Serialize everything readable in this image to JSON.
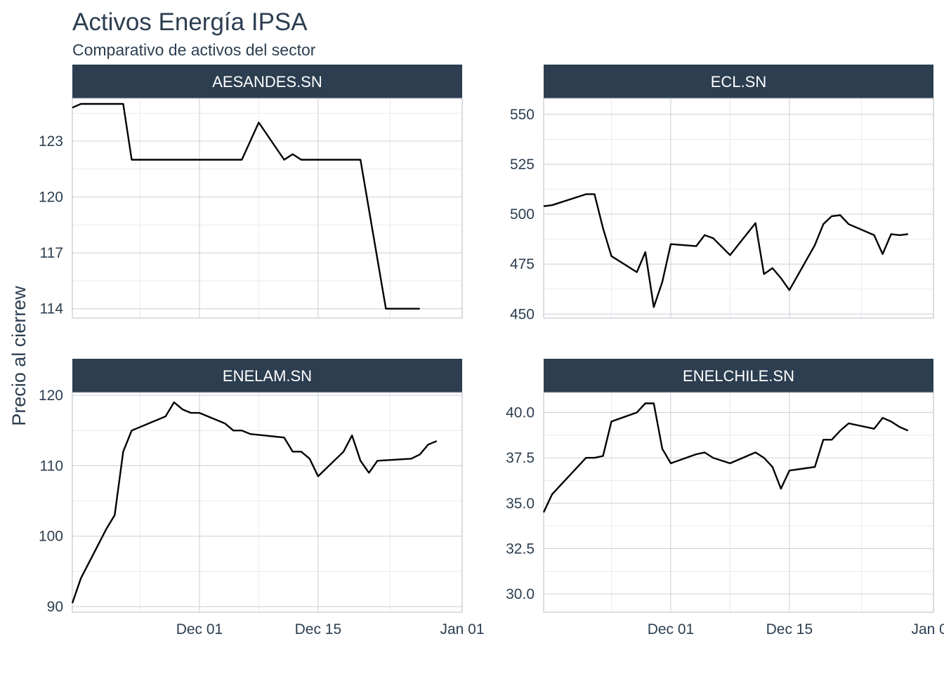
{
  "chart_data": {
    "type": "line",
    "title": "Activos Energía IPSA",
    "subtitle": "Comparativo de activos del sector",
    "ylabel": "Precio al cierrew",
    "xlabel": "",
    "grid": true,
    "facets": "2x2 free y scales, shared x axis",
    "x_ticks": [
      "Dec 01",
      "Dec 15",
      "Jan 01"
    ],
    "x_tick_dates": [
      "2023-12-01",
      "2023-12-15",
      "2024-01-01"
    ],
    "x_range": [
      "2023-11-16",
      "2024-01-01"
    ],
    "panels": [
      {
        "name": "AESANDES.SN",
        "y_ticks": [
          "114",
          "117",
          "120",
          "123"
        ],
        "y_tick_values": [
          114,
          117,
          120,
          123
        ],
        "ylim": [
          113.5,
          125.3
        ],
        "x": [
          "2023-11-16",
          "2023-11-17",
          "2023-11-22",
          "2023-11-23",
          "2023-11-29",
          "2023-12-06",
          "2023-12-08",
          "2023-12-11",
          "2023-12-12",
          "2023-12-13",
          "2023-12-20",
          "2023-12-23",
          "2023-12-27"
        ],
        "y": [
          124.8,
          125.0,
          125.0,
          122.0,
          122.0,
          122.0,
          124.0,
          122.0,
          122.3,
          122.0,
          122.0,
          114.0,
          114.0
        ]
      },
      {
        "name": "ECL.SN",
        "y_ticks": [
          "450",
          "475",
          "500",
          "525",
          "550"
        ],
        "y_tick_values": [
          450,
          475,
          500,
          525,
          550
        ],
        "ylim": [
          448,
          558
        ],
        "x": [
          "2023-11-16",
          "2023-11-17",
          "2023-11-21",
          "2023-11-22",
          "2023-11-23",
          "2023-11-24",
          "2023-11-27",
          "2023-11-28",
          "2023-11-29",
          "2023-11-30",
          "2023-12-01",
          "2023-12-04",
          "2023-12-05",
          "2023-12-06",
          "2023-12-08",
          "2023-12-11",
          "2023-12-12",
          "2023-12-13",
          "2023-12-14",
          "2023-12-15",
          "2023-12-18",
          "2023-12-19",
          "2023-12-20",
          "2023-12-21",
          "2023-12-22",
          "2023-12-25",
          "2023-12-26",
          "2023-12-27",
          "2023-12-28",
          "2023-12-29"
        ],
        "y": [
          504,
          504.5,
          510,
          510,
          493,
          479,
          471,
          481,
          453.5,
          466,
          485,
          484,
          489.5,
          488,
          479.5,
          495.5,
          470,
          473,
          468,
          462,
          484.5,
          495,
          499,
          499.5,
          495,
          489.5,
          480,
          490,
          489.5,
          490
        ]
      },
      {
        "name": "ENELAM.SN",
        "y_ticks": [
          "90",
          "100",
          "110",
          "120"
        ],
        "y_tick_values": [
          90,
          100,
          110,
          120
        ],
        "ylim": [
          89.2,
          120.4
        ],
        "x": [
          "2023-11-16",
          "2023-11-17",
          "2023-11-20",
          "2023-11-21",
          "2023-11-22",
          "2023-11-23",
          "2023-11-27",
          "2023-11-28",
          "2023-11-29",
          "2023-11-30",
          "2023-12-01",
          "2023-12-04",
          "2023-12-05",
          "2023-12-06",
          "2023-12-07",
          "2023-12-11",
          "2023-12-12",
          "2023-12-13",
          "2023-12-14",
          "2023-12-15",
          "2023-12-18",
          "2023-12-19",
          "2023-12-20",
          "2023-12-21",
          "2023-12-22",
          "2023-12-26",
          "2023-12-27",
          "2023-12-28",
          "2023-12-29"
        ],
        "y": [
          90.5,
          94,
          101,
          103,
          112,
          115,
          117,
          119,
          118,
          117.5,
          117.5,
          116,
          115,
          115,
          114.5,
          114,
          112,
          112,
          111,
          108.5,
          112,
          114.3,
          110.7,
          109,
          110.7,
          111,
          111.6,
          113,
          113.5
        ]
      },
      {
        "name": "ENELCHILE.SN",
        "y_ticks": [
          "30.0",
          "32.5",
          "35.0",
          "37.5",
          "40.0"
        ],
        "y_tick_values": [
          30.0,
          32.5,
          35.0,
          37.5,
          40.0
        ],
        "ylim": [
          29.0,
          41.1
        ],
        "x": [
          "2023-11-16",
          "2023-11-17",
          "2023-11-20",
          "2023-11-21",
          "2023-11-22",
          "2023-11-23",
          "2023-11-24",
          "2023-11-27",
          "2023-11-28",
          "2023-11-29",
          "2023-11-30",
          "2023-12-01",
          "2023-12-04",
          "2023-12-05",
          "2023-12-06",
          "2023-12-08",
          "2023-12-11",
          "2023-12-12",
          "2023-12-13",
          "2023-12-14",
          "2023-12-15",
          "2023-12-18",
          "2023-12-19",
          "2023-12-20",
          "2023-12-21",
          "2023-12-22",
          "2023-12-25",
          "2023-12-26",
          "2023-12-27",
          "2023-12-28",
          "2023-12-29"
        ],
        "y": [
          34.5,
          35.5,
          37.0,
          37.5,
          37.5,
          37.6,
          39.5,
          40.0,
          40.5,
          40.5,
          38.0,
          37.2,
          37.7,
          37.8,
          37.5,
          37.2,
          37.8,
          37.5,
          37.0,
          35.8,
          36.8,
          37.0,
          38.5,
          38.5,
          39.0,
          39.4,
          39.1,
          39.7,
          39.5,
          39.2,
          39.0
        ]
      }
    ]
  }
}
